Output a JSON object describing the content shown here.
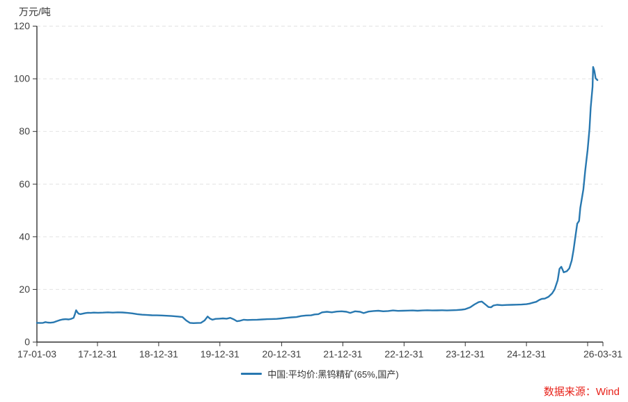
{
  "page": {
    "background": "#ffffff"
  },
  "chart": {
    "unit_label": "万元/吨",
    "source_text": "数据来源：Wind",
    "legend_label": "中国:平均价:黑钨精矿(65%,国产)"
  },
  "colors": {
    "line": "#2878b0",
    "axis": "#333333",
    "tick_text": "#404040",
    "grid": "#e2e2e2",
    "source_red": "#e8221a"
  },
  "chart_data": {
    "type": "line",
    "title": "",
    "ylabel": "万元/吨",
    "xlabel": "",
    "ylim": [
      0,
      120
    ],
    "yticks": [
      0,
      20,
      40,
      60,
      80,
      100,
      120
    ],
    "grid": "horizontal-dashed",
    "legend_position": "bottom-center",
    "x_unit": "years since 2017-01-03",
    "xlim": [
      0,
      9.25
    ],
    "xticks": [
      {
        "t": 0.0,
        "label": "17-01-03"
      },
      {
        "t": 0.99,
        "label": "17-12-31"
      },
      {
        "t": 1.99,
        "label": "18-12-31"
      },
      {
        "t": 2.99,
        "label": "19-12-31"
      },
      {
        "t": 4.0,
        "label": "20-12-31"
      },
      {
        "t": 5.0,
        "label": "21-12-31"
      },
      {
        "t": 6.0,
        "label": "22-12-31"
      },
      {
        "t": 7.0,
        "label": "23-12-31"
      },
      {
        "t": 8.0,
        "label": "24-12-31"
      },
      {
        "t": 9.0,
        "label": ""
      },
      {
        "t": 9.25,
        "label": "26-03-31"
      }
    ],
    "series": [
      {
        "name": "中国:平均价:黑钨精矿(65%,国产)",
        "color": "#2878b0",
        "points": [
          [
            0.0,
            7.3
          ],
          [
            0.06,
            7.25
          ],
          [
            0.1,
            7.3
          ],
          [
            0.14,
            7.6
          ],
          [
            0.18,
            7.4
          ],
          [
            0.22,
            7.35
          ],
          [
            0.27,
            7.5
          ],
          [
            0.32,
            7.9
          ],
          [
            0.37,
            8.3
          ],
          [
            0.42,
            8.6
          ],
          [
            0.47,
            8.7
          ],
          [
            0.52,
            8.6
          ],
          [
            0.56,
            8.8
          ],
          [
            0.6,
            9.2
          ],
          [
            0.62,
            10.5
          ],
          [
            0.64,
            12.1
          ],
          [
            0.66,
            11.4
          ],
          [
            0.68,
            10.8
          ],
          [
            0.71,
            10.6
          ],
          [
            0.75,
            10.8
          ],
          [
            0.79,
            11.0
          ],
          [
            0.83,
            11.15
          ],
          [
            0.88,
            11.1
          ],
          [
            0.93,
            11.2
          ],
          [
            1.0,
            11.15
          ],
          [
            1.08,
            11.2
          ],
          [
            1.16,
            11.3
          ],
          [
            1.24,
            11.2
          ],
          [
            1.32,
            11.3
          ],
          [
            1.4,
            11.25
          ],
          [
            1.48,
            11.1
          ],
          [
            1.56,
            10.9
          ],
          [
            1.64,
            10.6
          ],
          [
            1.72,
            10.4
          ],
          [
            1.8,
            10.3
          ],
          [
            1.88,
            10.2
          ],
          [
            1.96,
            10.15
          ],
          [
            2.04,
            10.1
          ],
          [
            2.12,
            10.0
          ],
          [
            2.2,
            9.9
          ],
          [
            2.3,
            9.7
          ],
          [
            2.38,
            9.5
          ],
          [
            2.44,
            8.2
          ],
          [
            2.5,
            7.3
          ],
          [
            2.56,
            7.2
          ],
          [
            2.62,
            7.25
          ],
          [
            2.68,
            7.3
          ],
          [
            2.74,
            8.2
          ],
          [
            2.79,
            9.7
          ],
          [
            2.83,
            8.9
          ],
          [
            2.87,
            8.5
          ],
          [
            2.92,
            8.8
          ],
          [
            2.98,
            8.9
          ],
          [
            3.04,
            9.0
          ],
          [
            3.1,
            8.9
          ],
          [
            3.16,
            9.2
          ],
          [
            3.22,
            8.6
          ],
          [
            3.27,
            7.9
          ],
          [
            3.32,
            8.1
          ],
          [
            3.38,
            8.5
          ],
          [
            3.44,
            8.4
          ],
          [
            3.52,
            8.45
          ],
          [
            3.6,
            8.5
          ],
          [
            3.68,
            8.6
          ],
          [
            3.76,
            8.7
          ],
          [
            3.84,
            8.75
          ],
          [
            3.92,
            8.8
          ],
          [
            4.0,
            9.0
          ],
          [
            4.08,
            9.2
          ],
          [
            4.16,
            9.4
          ],
          [
            4.24,
            9.5
          ],
          [
            4.32,
            9.9
          ],
          [
            4.4,
            10.1
          ],
          [
            4.48,
            10.15
          ],
          [
            4.54,
            10.5
          ],
          [
            4.6,
            10.6
          ],
          [
            4.66,
            11.3
          ],
          [
            4.74,
            11.5
          ],
          [
            4.82,
            11.3
          ],
          [
            4.9,
            11.6
          ],
          [
            4.98,
            11.7
          ],
          [
            5.06,
            11.5
          ],
          [
            5.12,
            11.1
          ],
          [
            5.2,
            11.7
          ],
          [
            5.28,
            11.5
          ],
          [
            5.34,
            11.0
          ],
          [
            5.42,
            11.6
          ],
          [
            5.5,
            11.8
          ],
          [
            5.58,
            11.9
          ],
          [
            5.66,
            11.7
          ],
          [
            5.74,
            11.8
          ],
          [
            5.82,
            12.0
          ],
          [
            5.9,
            11.85
          ],
          [
            5.98,
            11.9
          ],
          [
            6.06,
            11.95
          ],
          [
            6.14,
            12.0
          ],
          [
            6.22,
            11.9
          ],
          [
            6.3,
            12.0
          ],
          [
            6.38,
            12.1
          ],
          [
            6.46,
            12.0
          ],
          [
            6.54,
            12.05
          ],
          [
            6.62,
            12.1
          ],
          [
            6.7,
            12.0
          ],
          [
            6.78,
            12.1
          ],
          [
            6.86,
            12.15
          ],
          [
            6.94,
            12.3
          ],
          [
            7.0,
            12.5
          ],
          [
            7.08,
            13.2
          ],
          [
            7.15,
            14.3
          ],
          [
            7.22,
            15.2
          ],
          [
            7.27,
            15.4
          ],
          [
            7.33,
            14.3
          ],
          [
            7.38,
            13.3
          ],
          [
            7.42,
            13.2
          ],
          [
            7.46,
            13.9
          ],
          [
            7.52,
            14.15
          ],
          [
            7.6,
            14.0
          ],
          [
            7.68,
            14.1
          ],
          [
            7.76,
            14.15
          ],
          [
            7.84,
            14.2
          ],
          [
            7.92,
            14.25
          ],
          [
            8.0,
            14.4
          ],
          [
            8.05,
            14.6
          ],
          [
            8.11,
            15.0
          ],
          [
            8.16,
            15.3
          ],
          [
            8.21,
            16.0
          ],
          [
            8.25,
            16.4
          ],
          [
            8.3,
            16.5
          ],
          [
            8.36,
            17.2
          ],
          [
            8.42,
            18.5
          ],
          [
            8.46,
            20.0
          ],
          [
            8.51,
            23.5
          ],
          [
            8.54,
            27.8
          ],
          [
            8.57,
            28.6
          ],
          [
            8.61,
            26.5
          ],
          [
            8.66,
            26.9
          ],
          [
            8.7,
            28.0
          ],
          [
            8.74,
            31.0
          ],
          [
            8.77,
            35.0
          ],
          [
            8.8,
            40.0
          ],
          [
            8.83,
            45.0
          ],
          [
            8.86,
            46.0
          ],
          [
            8.88,
            51.0
          ],
          [
            8.93,
            58.0
          ],
          [
            8.96,
            65.0
          ],
          [
            9.0,
            73.0
          ],
          [
            9.03,
            81.0
          ],
          [
            9.05,
            89.0
          ],
          [
            9.08,
            97.0
          ],
          [
            9.09,
            104.5
          ],
          [
            9.11,
            103.0
          ],
          [
            9.13,
            100.2
          ],
          [
            9.16,
            99.5
          ]
        ]
      }
    ]
  }
}
